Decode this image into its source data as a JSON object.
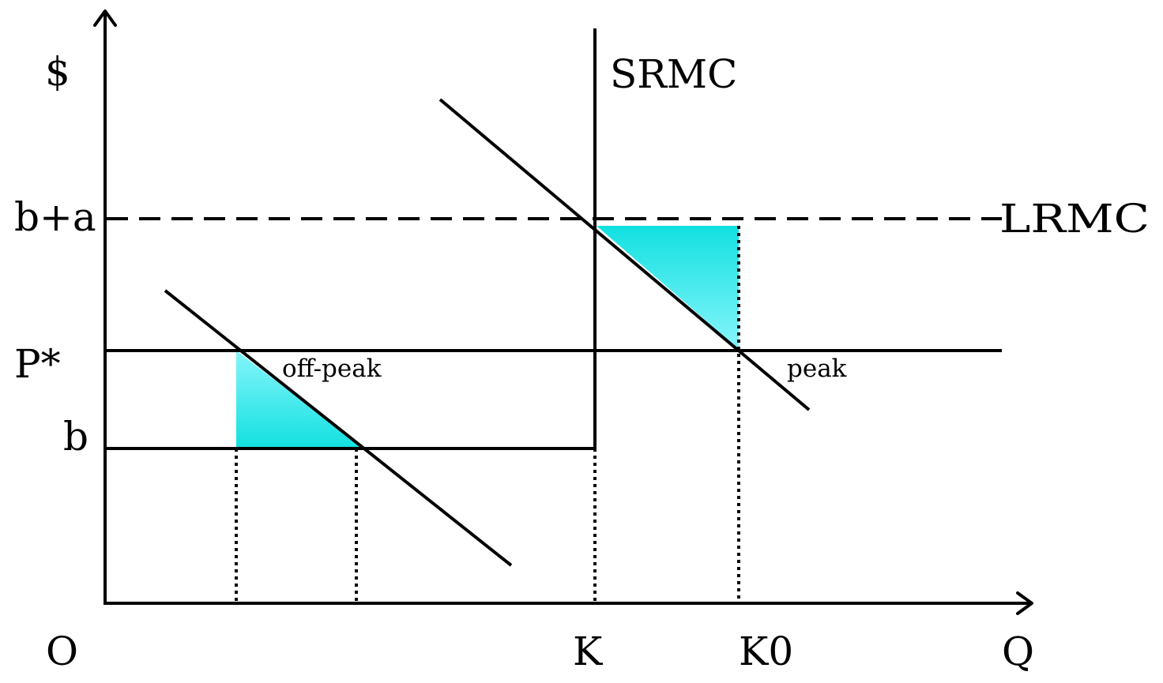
{
  "labels": {
    "y_axis": "$",
    "origin": "O",
    "x_axis": "Q",
    "price_b_plus_a": "b+a",
    "price_p_star": "P*",
    "price_b": "b",
    "srmc": "SRMC",
    "lrmc": "LRMC",
    "off_peak": "off-peak",
    "peak": "peak",
    "capacity_k": "K",
    "capacity_k0": "K0"
  },
  "colors": {
    "shaded_area_top": "#12e0e0",
    "shaded_area_bottom": "#86f5fb",
    "lines": "#000000"
  }
}
